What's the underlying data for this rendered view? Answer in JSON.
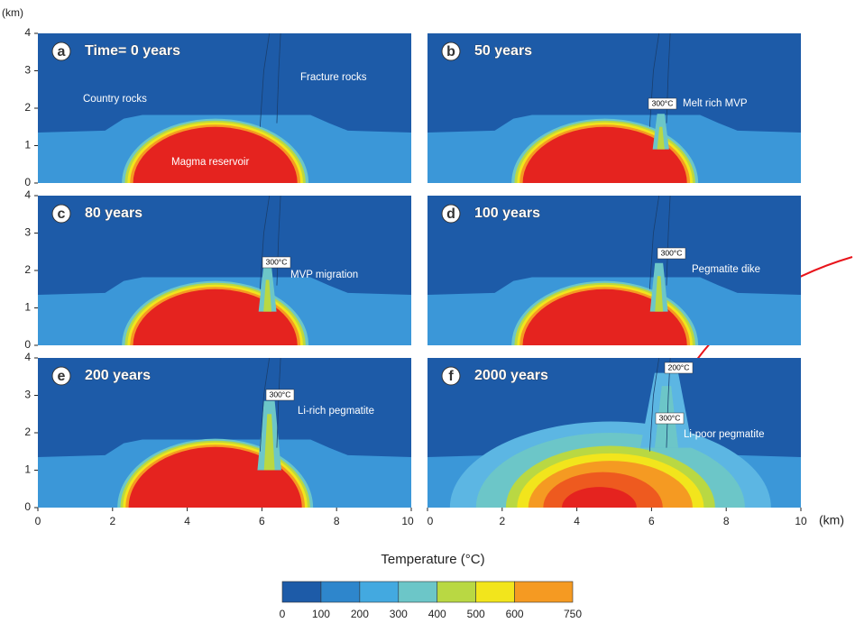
{
  "panels": [
    {
      "letter": "a",
      "time": "Time= 0 years",
      "labels": [
        "Fracture rocks",
        "Country rocks",
        "Magma reservoir"
      ]
    },
    {
      "letter": "b",
      "time": "50 years",
      "labels": [
        "300°C",
        "Melt rich MVP"
      ]
    },
    {
      "letter": "c",
      "time": "80 years",
      "labels": [
        "300°C",
        "MVP migration"
      ]
    },
    {
      "letter": "d",
      "time": "100 years",
      "labels": [
        "300°C",
        "Pegmatite dike"
      ]
    },
    {
      "letter": "e",
      "time": "200 years",
      "labels": [
        "300°C",
        "Li-rich pegmatite"
      ]
    },
    {
      "letter": "f",
      "time": "2000 years",
      "labels": [
        "200°C",
        "300°C",
        "Li-poor pegmatite"
      ]
    }
  ],
  "axes": {
    "y_unit": "(km)",
    "x_unit": "(km)",
    "yticks": [
      0,
      1,
      2,
      3,
      4
    ],
    "xticks": [
      0,
      2,
      4,
      6,
      8,
      10
    ]
  },
  "colorbar": {
    "title": "Temperature (°C)",
    "ticks": [
      0,
      100,
      200,
      300,
      400,
      500,
      600,
      750
    ]
  }
}
